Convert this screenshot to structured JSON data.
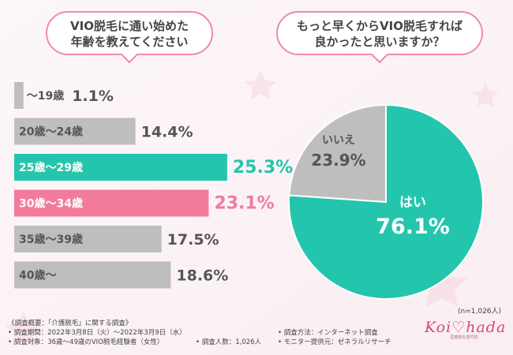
{
  "questions": {
    "left": [
      "VIO脱毛に通い始めた",
      "年齢を教えてください"
    ],
    "right": [
      "もっと早くからVIO脱毛すれば",
      "良かったと思いますか？"
    ]
  },
  "colors": {
    "gray": "#bebebe",
    "teal": "#23c6ac",
    "pink": "#f27a9b",
    "bubble_border": "#f08aa8"
  },
  "chart_data": [
    {
      "type": "bar",
      "orientation": "horizontal",
      "title": "VIO脱毛に通い始めた年齢を教えてください",
      "categories": [
        "～19歳",
        "20歳～24歳",
        "25歳～29歳",
        "30歳～34歳",
        "35歳～39歳",
        "40歳～"
      ],
      "values": [
        1.1,
        14.4,
        25.3,
        23.1,
        17.5,
        18.6
      ],
      "value_labels": [
        "1.1%",
        "14.4%",
        "25.3%",
        "23.1%",
        "17.5%",
        "18.6%"
      ],
      "highlight": [
        "gray",
        "gray",
        "teal",
        "pink",
        "gray",
        "gray"
      ],
      "xlim": [
        0,
        30
      ],
      "unit": "%"
    },
    {
      "type": "pie",
      "title": "もっと早くからVIO脱毛すれば良かったと思いますか？",
      "labels": [
        "はい",
        "いいえ"
      ],
      "values": [
        76.1,
        23.9
      ],
      "value_labels": [
        "76.1%",
        "23.9%"
      ],
      "slice_colors": [
        "teal",
        "gray"
      ],
      "n_label": "(n=1,026人)"
    }
  ],
  "footer": {
    "summary": "《調査概要：「介護脱毛」に関する調査》",
    "period": "• 調査期間：2022年3月8日（火）～2022年3月9日（水）",
    "target": "• 調査対象：36歳～49歳のVIO脱毛経験者（女性）",
    "count": "• 調査人数：1,026人",
    "method": "• 調査方法：インターネット調査",
    "provider": "• モニター提供元：ゼネラルリサーチ"
  },
  "logo": {
    "text": "Koi♡hada",
    "sub": "医療脱毛専門院"
  }
}
